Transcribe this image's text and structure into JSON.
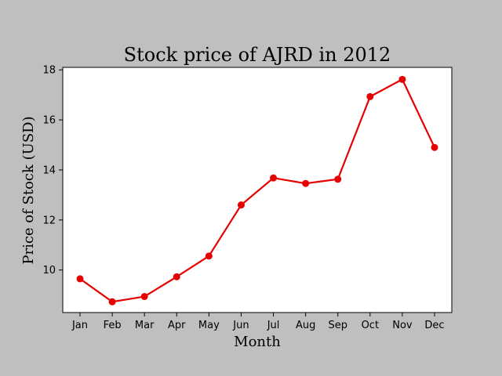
{
  "chart_data": {
    "type": "line",
    "title": "Stock price of AJRD in 2012",
    "xlabel": "Month",
    "ylabel": "Price of Stock (USD)",
    "categories": [
      "Jan",
      "Feb",
      "Mar",
      "Apr",
      "May",
      "Jun",
      "Jul",
      "Aug",
      "Sep",
      "Oct",
      "Nov",
      "Dec"
    ],
    "series": [
      {
        "values": [
          9.65,
          8.73,
          8.94,
          9.73,
          10.56,
          12.6,
          13.68,
          13.46,
          13.63,
          16.93,
          17.62,
          14.9
        ],
        "color": "#e60000",
        "marker": "circle"
      }
    ],
    "ylim": [
      8.3,
      18.1
    ],
    "yticks": [
      10,
      12,
      14,
      16,
      18
    ],
    "grid": false,
    "legend": "none",
    "background_color": "#bfbfbf",
    "plot_area_color": "#ffffff"
  }
}
